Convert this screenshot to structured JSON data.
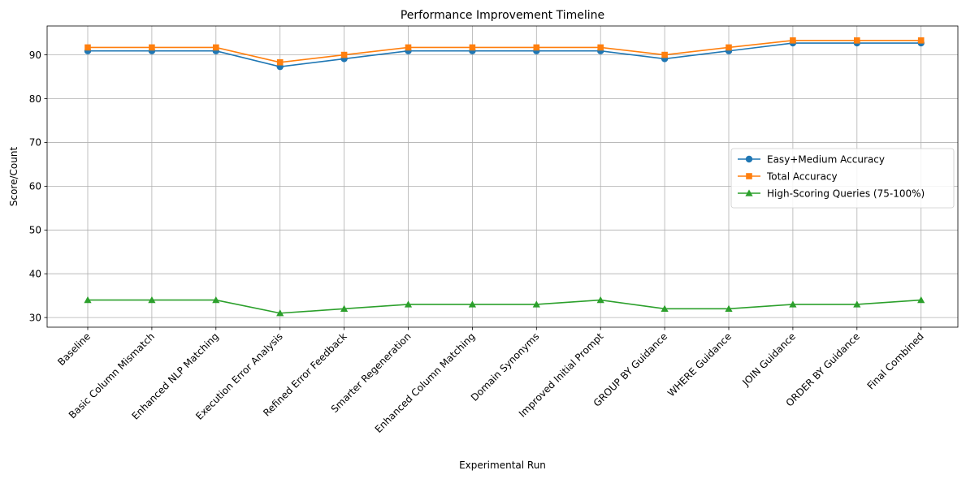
{
  "chart_data": {
    "type": "line",
    "title": "Performance Improvement Timeline",
    "xlabel": "Experimental Run",
    "ylabel": "Score/Count",
    "categories": [
      "Baseline",
      "Basic Column Mismatch",
      "Enhanced NLP Matching",
      "Execution Error Analysis",
      "Refined Error Feedback",
      "Smarter Regeneration",
      "Enhanced Column Matching",
      "Domain Synonyms",
      "Improved Initial Prompt",
      "GROUP BY Guidance",
      "WHERE Guidance",
      "JOIN Guidance",
      "ORDER BY Guidance",
      "Final Combined"
    ],
    "series": [
      {
        "name": "Easy+Medium Accuracy",
        "color": "#1f77b4",
        "marker": "circle",
        "values": [
          90.9,
          90.9,
          90.9,
          87.3,
          89.1,
          90.9,
          90.9,
          90.9,
          90.9,
          89.1,
          90.9,
          92.7,
          92.7,
          92.7
        ]
      },
      {
        "name": "Total Accuracy",
        "color": "#ff7f0e",
        "marker": "square",
        "values": [
          91.7,
          91.7,
          91.7,
          88.3,
          90.0,
          91.7,
          91.7,
          91.7,
          91.7,
          90.0,
          91.7,
          93.3,
          93.3,
          93.3
        ]
      },
      {
        "name": "High-Scoring Queries (75-100%)",
        "color": "#2ca02c",
        "marker": "triangle",
        "values": [
          34,
          34,
          34,
          31,
          32,
          33,
          33,
          33,
          34,
          32,
          32,
          33,
          33,
          34
        ]
      }
    ],
    "yticks": [
      "30",
      "40",
      "50",
      "60",
      "70",
      "80",
      "90"
    ],
    "ylim": [
      27.8,
      96.6
    ],
    "grid": true,
    "legend_position": "center-right"
  }
}
